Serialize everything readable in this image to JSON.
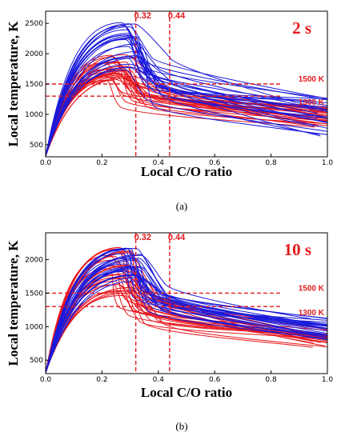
{
  "colors": {
    "red": "#e8141c",
    "blue": "#1a1adc",
    "annotation": "#e31a1c",
    "axis": "#000000"
  },
  "chart_data": [
    {
      "type": "line",
      "panel_caption": "(a)",
      "time_label": "2 s",
      "xlabel": "Local C/O ratio",
      "ylabel": "Local temperature, K",
      "xlim": [
        0,
        1.0
      ],
      "ylim": [
        300,
        2700
      ],
      "x_ticks": [
        "0.0",
        "0.2",
        "0.4",
        "0.6",
        "0.8",
        "1.0"
      ],
      "y_ticks": [
        "500",
        "1000",
        "1500",
        "2000",
        "2500"
      ],
      "y_tick_values": [
        500,
        1000,
        1500,
        2000,
        2500
      ],
      "vlines": [
        {
          "x": 0.32,
          "label": "0.32"
        },
        {
          "x": 0.44,
          "label": "0.44"
        }
      ],
      "hlines": [
        {
          "y": 1500,
          "label": "1500 K"
        },
        {
          "y": 1300,
          "label": "1300 K"
        }
      ],
      "grid": false,
      "series": [
        {
          "color": "red",
          "count": 28,
          "peak_x": [
            0.2,
            0.32
          ],
          "peak_y": [
            1550,
            2000
          ],
          "end_y": [
            760,
            1130
          ]
        },
        {
          "color": "blue",
          "count": 26,
          "peak_x": [
            0.26,
            0.34
          ],
          "peak_y": [
            1700,
            2560
          ],
          "end_y": [
            600,
            1270
          ]
        }
      ]
    },
    {
      "type": "line",
      "panel_caption": "(b)",
      "time_label": "10 s",
      "xlabel": "Local C/O ratio",
      "ylabel": "Local temperature, K",
      "xlim": [
        0,
        1.0
      ],
      "ylim": [
        300,
        2400
      ],
      "x_ticks": [
        "0.0",
        "0.2",
        "0.4",
        "0.6",
        "0.8",
        "1.0"
      ],
      "y_ticks": [
        "500",
        "1000",
        "1500",
        "2000"
      ],
      "y_tick_values": [
        500,
        1000,
        1500,
        2000
      ],
      "vlines": [
        {
          "x": 0.32,
          "label": "0.32"
        },
        {
          "x": 0.44,
          "label": "0.44"
        }
      ],
      "hlines": [
        {
          "y": 1500,
          "label": "1500 K"
        },
        {
          "y": 1300,
          "label": "1300 K"
        }
      ],
      "grid": false,
      "series": [
        {
          "color": "red",
          "count": 28,
          "peak_x": [
            0.22,
            0.31
          ],
          "peak_y": [
            1450,
            2200
          ],
          "end_y": [
            680,
            920
          ]
        },
        {
          "color": "blue",
          "count": 26,
          "peak_x": [
            0.27,
            0.34
          ],
          "peak_y": [
            1550,
            2180
          ],
          "end_y": [
            780,
            1120
          ]
        }
      ]
    }
  ]
}
